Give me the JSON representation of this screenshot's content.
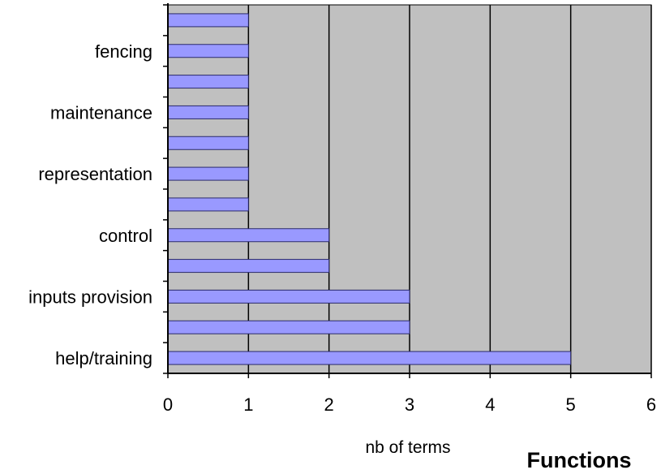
{
  "chart_data": {
    "type": "bar",
    "orientation": "horizontal",
    "categories": [
      "",
      "fencing",
      "",
      "maintenance",
      "",
      "representation",
      "",
      "control",
      "",
      "inputs provision",
      "",
      "help/training"
    ],
    "values": [
      1,
      1,
      1,
      1,
      1,
      1,
      1,
      2,
      2,
      3,
      3,
      5
    ],
    "xlabel": "nb of terms",
    "footer_title": "Functions",
    "xlim": [
      0,
      6
    ],
    "x_ticks": [
      "0",
      "1",
      "2",
      "3",
      "4",
      "5",
      "6"
    ],
    "grid": "vertical",
    "legend": "none",
    "colors": {
      "bar_fill": "#9999ff",
      "bar_stroke": "#2a2a6a",
      "plot_background": "#c0c0c0",
      "gridline": "#000000"
    }
  }
}
